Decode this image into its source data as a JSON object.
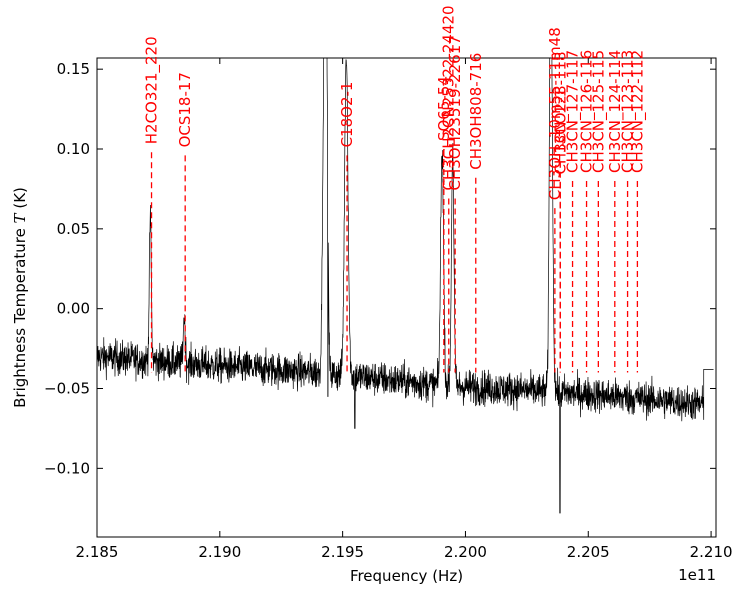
{
  "chart_data": {
    "type": "line",
    "xlabel": "Frequency (Hz)",
    "ylabel_prefix": "Brightness Temperature ",
    "ylabel_var": "T",
    "ylabel_suffix": " (K)",
    "x_offset_label": "1e11",
    "xlim": [
      2.185,
      2.2102
    ],
    "ylim": [
      -0.143,
      0.157
    ],
    "x_ticks": [
      2.185,
      2.19,
      2.195,
      2.2,
      2.205,
      2.21
    ],
    "x_tick_labels": [
      "2.185",
      "2.190",
      "2.195",
      "2.200",
      "2.205",
      "2.210"
    ],
    "y_ticks": [
      0.15,
      0.1,
      0.05,
      0.0,
      -0.05,
      -0.1
    ],
    "y_tick_labels": [
      "0.15",
      "0.10",
      "0.05",
      "0.00",
      "−0.05",
      "−0.10"
    ],
    "line_color": "#000000",
    "marker_color": "#ff0000",
    "spectrum": {
      "x_start": 2.185,
      "x_end": 2.2097,
      "step_end_x": 2.2101,
      "step_end_y": -0.038,
      "baseline": [
        [
          2.185,
          -0.03
        ],
        [
          2.19,
          -0.036
        ],
        [
          2.194,
          -0.04
        ],
        [
          2.199,
          -0.048
        ],
        [
          2.2035,
          -0.052
        ],
        [
          2.207,
          -0.056
        ],
        [
          2.2097,
          -0.06
        ]
      ],
      "peaks": [
        {
          "x": 2.18717,
          "y": 0.058,
          "w": 4e-05
        },
        {
          "x": 2.18855,
          "y": -0.005,
          "w": 4e-05
        },
        {
          "x": 2.19425,
          "y": 0.16,
          "w": 6e-05
        },
        {
          "x": 2.19435,
          "y": 0.14,
          "w": 5e-05
        },
        {
          "x": 2.19515,
          "y": 0.16,
          "w": 7e-05
        },
        {
          "x": 2.19905,
          "y": 0.1,
          "w": 6e-05
        },
        {
          "x": 2.19948,
          "y": 0.1,
          "w": 5e-05
        },
        {
          "x": 2.20346,
          "y": 0.1,
          "w": 5e-05
        },
        {
          "x": 2.2035,
          "y": 0.1,
          "w": 6e-05
        }
      ],
      "dips": [
        {
          "x": 2.1944,
          "y": -0.055
        },
        {
          "x": 2.1955,
          "y": -0.075
        },
        {
          "x": 2.20385,
          "y": -0.128
        }
      ]
    },
    "lines": [
      {
        "name": "H2CO321_220",
        "x": 2.18722,
        "label_top_y": 0.103
      },
      {
        "name": "OCS18-17",
        "x": 2.18859,
        "label_top_y": 0.101
      },
      {
        "name": "C18O2-1",
        "x": 2.19518,
        "label_top_y": 0.101
      },
      {
        "name": "SO65-54",
        "x": 2.19912,
        "label_top_y": 0.105
      },
      {
        "name": "CH3CH2CN25322-24420",
        "x": 2.19932,
        "label_top_y": 0.074
      },
      {
        "name": "CH3OH23519-22617",
        "x": 2.19958,
        "label_top_y": 0.074
      },
      {
        "name": "CH3OH808-716",
        "x": 2.20042,
        "label_top_y": 0.087
      },
      {
        "name": "13CO2-1",
        "x": 2.20386,
        "label_top_y": 0.097
      },
      {
        "name": "CH3OH_10m55-11m48",
        "x": 2.20364,
        "label_top_y": 0.068
      },
      {
        "name": "CH3CN_128-118",
        "x": 2.20386,
        "label_top_y": 0.084
      },
      {
        "name": "CH3CN_127-117",
        "x": 2.20436,
        "label_top_y": 0.085
      },
      {
        "name": "CH3CN_126-116",
        "x": 2.20493,
        "label_top_y": 0.085
      },
      {
        "name": "CH3CN_125-115",
        "x": 2.20541,
        "label_top_y": 0.085
      },
      {
        "name": "CH3CN_124-114",
        "x": 2.20608,
        "label_top_y": 0.085
      },
      {
        "name": "CH3CN_123-113",
        "x": 2.2066,
        "label_top_y": 0.085
      },
      {
        "name": "CH3CN_122-112",
        "x": 2.207,
        "label_top_y": 0.085
      }
    ],
    "line_dash_bottom_y": -0.04
  }
}
